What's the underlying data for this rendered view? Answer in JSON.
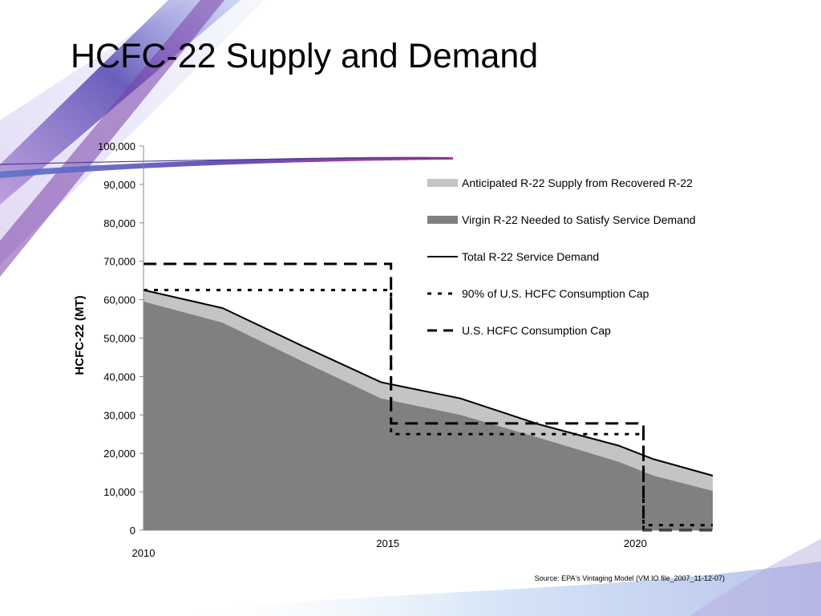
{
  "slide": {
    "title": "HCFC-22 Supply and Demand",
    "source": "Source: EPA's Vintaging Model (VM IO file_2007_11-12-07)"
  },
  "colors": {
    "recovered": "#c4c4c4",
    "virgin": "#808080",
    "line": "#000000",
    "deco_purple": "#6a4fb5",
    "deco_magenta": "#c0338a",
    "deco_blue": "#5b73c9"
  },
  "chart_data": {
    "type": "area",
    "title": "",
    "xlabel": "",
    "ylabel": "HCFC-22 (MT)",
    "xlim": [
      2010,
      2021.5
    ],
    "ylim": [
      0,
      100000
    ],
    "y_ticks": [
      0,
      10000,
      20000,
      30000,
      40000,
      50000,
      60000,
      70000,
      80000,
      90000,
      100000
    ],
    "y_tick_labels": [
      "0",
      "10,000",
      "20,000",
      "30,000",
      "40,000",
      "50,000",
      "60,000",
      "70,000",
      "80,000",
      "90,000",
      "100,000"
    ],
    "x_tick_labels": [
      {
        "year": 2010,
        "label": "2010"
      },
      {
        "year": 2015,
        "label": "2015"
      },
      {
        "year": 2020,
        "label": "2020"
      }
    ],
    "grid": false,
    "legend_position": "right",
    "x": [
      2010,
      2011.6,
      2013.2,
      2014.8,
      2016.4,
      2018,
      2019.6,
      2020.3,
      2021.5
    ],
    "series": [
      {
        "name": "Anticipated R-22 Supply from Recovered R-22",
        "kind": "area",
        "color": "#c4c4c4",
        "values": [
          62500,
          57800,
          48000,
          38500,
          34300,
          27500,
          22000,
          18500,
          14200
        ]
      },
      {
        "name": "Virgin R-22 Needed to Satisfy Service Demand",
        "kind": "area",
        "color": "#808080",
        "values": [
          59500,
          54000,
          44000,
          34300,
          30000,
          24000,
          17800,
          14200,
          10200
        ]
      },
      {
        "name": "Total R-22 Service Demand",
        "kind": "line",
        "style": "solid",
        "values": [
          62500,
          57800,
          48000,
          38500,
          34300,
          27500,
          22000,
          18500,
          14200
        ]
      },
      {
        "name": "90%  of U.S. HCFC Consumption Cap",
        "kind": "step",
        "style": "dotted",
        "points": [
          [
            2010,
            62500
          ],
          [
            2015,
            62500
          ],
          [
            2015,
            25000
          ],
          [
            2020.1,
            25000
          ],
          [
            2020.1,
            1300
          ],
          [
            2021.5,
            1300
          ]
        ]
      },
      {
        "name": "U.S. HCFC Consumption Cap",
        "kind": "step",
        "style": "dashed",
        "points": [
          [
            2010,
            69300
          ],
          [
            2015,
            69300
          ],
          [
            2015,
            27800
          ],
          [
            2020.1,
            27800
          ],
          [
            2020.1,
            0
          ],
          [
            2021.5,
            0
          ]
        ]
      }
    ]
  }
}
